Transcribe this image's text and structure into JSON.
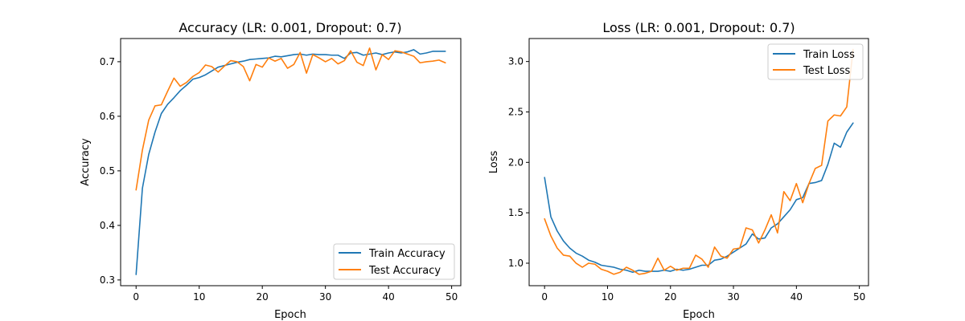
{
  "colors": {
    "train": "#1f77b4",
    "test": "#ff7f0e"
  },
  "chart_data": [
    {
      "type": "line",
      "title": "Accuracy (LR: 0.001, Dropout: 0.7)",
      "xlabel": "Epoch",
      "ylabel": "Accuracy",
      "xlim": [
        -2.45,
        51.45
      ],
      "ylim": [
        0.2895,
        0.7425
      ],
      "xticks": [
        0,
        10,
        20,
        30,
        40,
        50
      ],
      "yticks": [
        0.3,
        0.4,
        0.5,
        0.6,
        0.7
      ],
      "xtick_labels": [
        "0",
        "10",
        "20",
        "30",
        "40",
        "50"
      ],
      "ytick_labels": [
        "0.3",
        "0.4",
        "0.5",
        "0.6",
        "0.7"
      ],
      "legend_position": "lower-right",
      "grid": false,
      "x": [
        0,
        1,
        2,
        3,
        4,
        5,
        6,
        7,
        8,
        9,
        10,
        11,
        12,
        13,
        14,
        15,
        16,
        17,
        18,
        19,
        20,
        21,
        22,
        23,
        24,
        25,
        26,
        27,
        28,
        29,
        30,
        31,
        32,
        33,
        34,
        35,
        36,
        37,
        38,
        39,
        40,
        41,
        42,
        43,
        44,
        45,
        46,
        47,
        48,
        49
      ],
      "series": [
        {
          "name": "Train Accuracy",
          "color": "#1f77b4",
          "values": [
            0.31,
            0.468,
            0.53,
            0.571,
            0.605,
            0.622,
            0.634,
            0.647,
            0.657,
            0.668,
            0.671,
            0.676,
            0.683,
            0.69,
            0.693,
            0.696,
            0.699,
            0.701,
            0.704,
            0.705,
            0.706,
            0.707,
            0.71,
            0.709,
            0.711,
            0.713,
            0.714,
            0.712,
            0.714,
            0.713,
            0.713,
            0.712,
            0.712,
            0.706,
            0.716,
            0.717,
            0.712,
            0.714,
            0.716,
            0.713,
            0.716,
            0.718,
            0.716,
            0.718,
            0.722,
            0.714,
            0.716,
            0.719,
            0.719,
            0.719
          ]
        },
        {
          "name": "Test Accuracy",
          "color": "#ff7f0e",
          "values": [
            0.465,
            0.538,
            0.593,
            0.619,
            0.621,
            0.646,
            0.67,
            0.655,
            0.662,
            0.673,
            0.68,
            0.694,
            0.691,
            0.681,
            0.692,
            0.702,
            0.7,
            0.691,
            0.665,
            0.695,
            0.69,
            0.707,
            0.701,
            0.706,
            0.688,
            0.695,
            0.717,
            0.679,
            0.713,
            0.707,
            0.7,
            0.706,
            0.696,
            0.702,
            0.72,
            0.699,
            0.693,
            0.725,
            0.685,
            0.713,
            0.704,
            0.72,
            0.718,
            0.714,
            0.71,
            0.698,
            0.7,
            0.701,
            0.703,
            0.698
          ]
        }
      ]
    },
    {
      "type": "line",
      "title": "Loss (LR: 0.001, Dropout: 0.7)",
      "xlabel": "Epoch",
      "ylabel": "Loss",
      "xlim": [
        -2.45,
        51.45
      ],
      "ylim": [
        0.777,
        3.228
      ],
      "xticks": [
        0,
        10,
        20,
        30,
        40,
        50
      ],
      "yticks": [
        1.0,
        1.5,
        2.0,
        2.5,
        3.0
      ],
      "xtick_labels": [
        "0",
        "10",
        "20",
        "30",
        "40",
        "50"
      ],
      "ytick_labels": [
        "1.0",
        "1.5",
        "2.0",
        "2.5",
        "3.0"
      ],
      "legend_position": "upper-right",
      "grid": false,
      "x": [
        0,
        1,
        2,
        3,
        4,
        5,
        6,
        7,
        8,
        9,
        10,
        11,
        12,
        13,
        14,
        15,
        16,
        17,
        18,
        19,
        20,
        21,
        22,
        23,
        24,
        25,
        26,
        27,
        28,
        29,
        30,
        31,
        32,
        33,
        34,
        35,
        36,
        37,
        38,
        39,
        40,
        41,
        42,
        43,
        44,
        45,
        46,
        47,
        48,
        49
      ],
      "series": [
        {
          "name": "Train Loss",
          "color": "#1f77b4",
          "values": [
            1.85,
            1.46,
            1.32,
            1.22,
            1.15,
            1.1,
            1.07,
            1.03,
            1.01,
            0.98,
            0.97,
            0.96,
            0.94,
            0.93,
            0.91,
            0.93,
            0.92,
            0.92,
            0.92,
            0.93,
            0.92,
            0.94,
            0.93,
            0.94,
            0.96,
            0.98,
            0.98,
            1.03,
            1.04,
            1.07,
            1.11,
            1.15,
            1.19,
            1.29,
            1.24,
            1.25,
            1.35,
            1.39,
            1.46,
            1.53,
            1.63,
            1.65,
            1.79,
            1.8,
            1.82,
            1.98,
            2.19,
            2.15,
            2.3,
            2.39
          ]
        },
        {
          "name": "Test Loss",
          "color": "#ff7f0e",
          "values": [
            1.44,
            1.27,
            1.15,
            1.08,
            1.07,
            1.0,
            0.96,
            1.0,
            0.99,
            0.94,
            0.92,
            0.89,
            0.91,
            0.96,
            0.93,
            0.89,
            0.9,
            0.92,
            1.05,
            0.93,
            0.97,
            0.93,
            0.95,
            0.95,
            1.08,
            1.04,
            0.96,
            1.16,
            1.07,
            1.05,
            1.14,
            1.15,
            1.35,
            1.33,
            1.2,
            1.33,
            1.48,
            1.3,
            1.71,
            1.62,
            1.79,
            1.6,
            1.79,
            1.94,
            1.97,
            2.41,
            2.47,
            2.46,
            2.55,
            3.12
          ]
        }
      ]
    }
  ]
}
